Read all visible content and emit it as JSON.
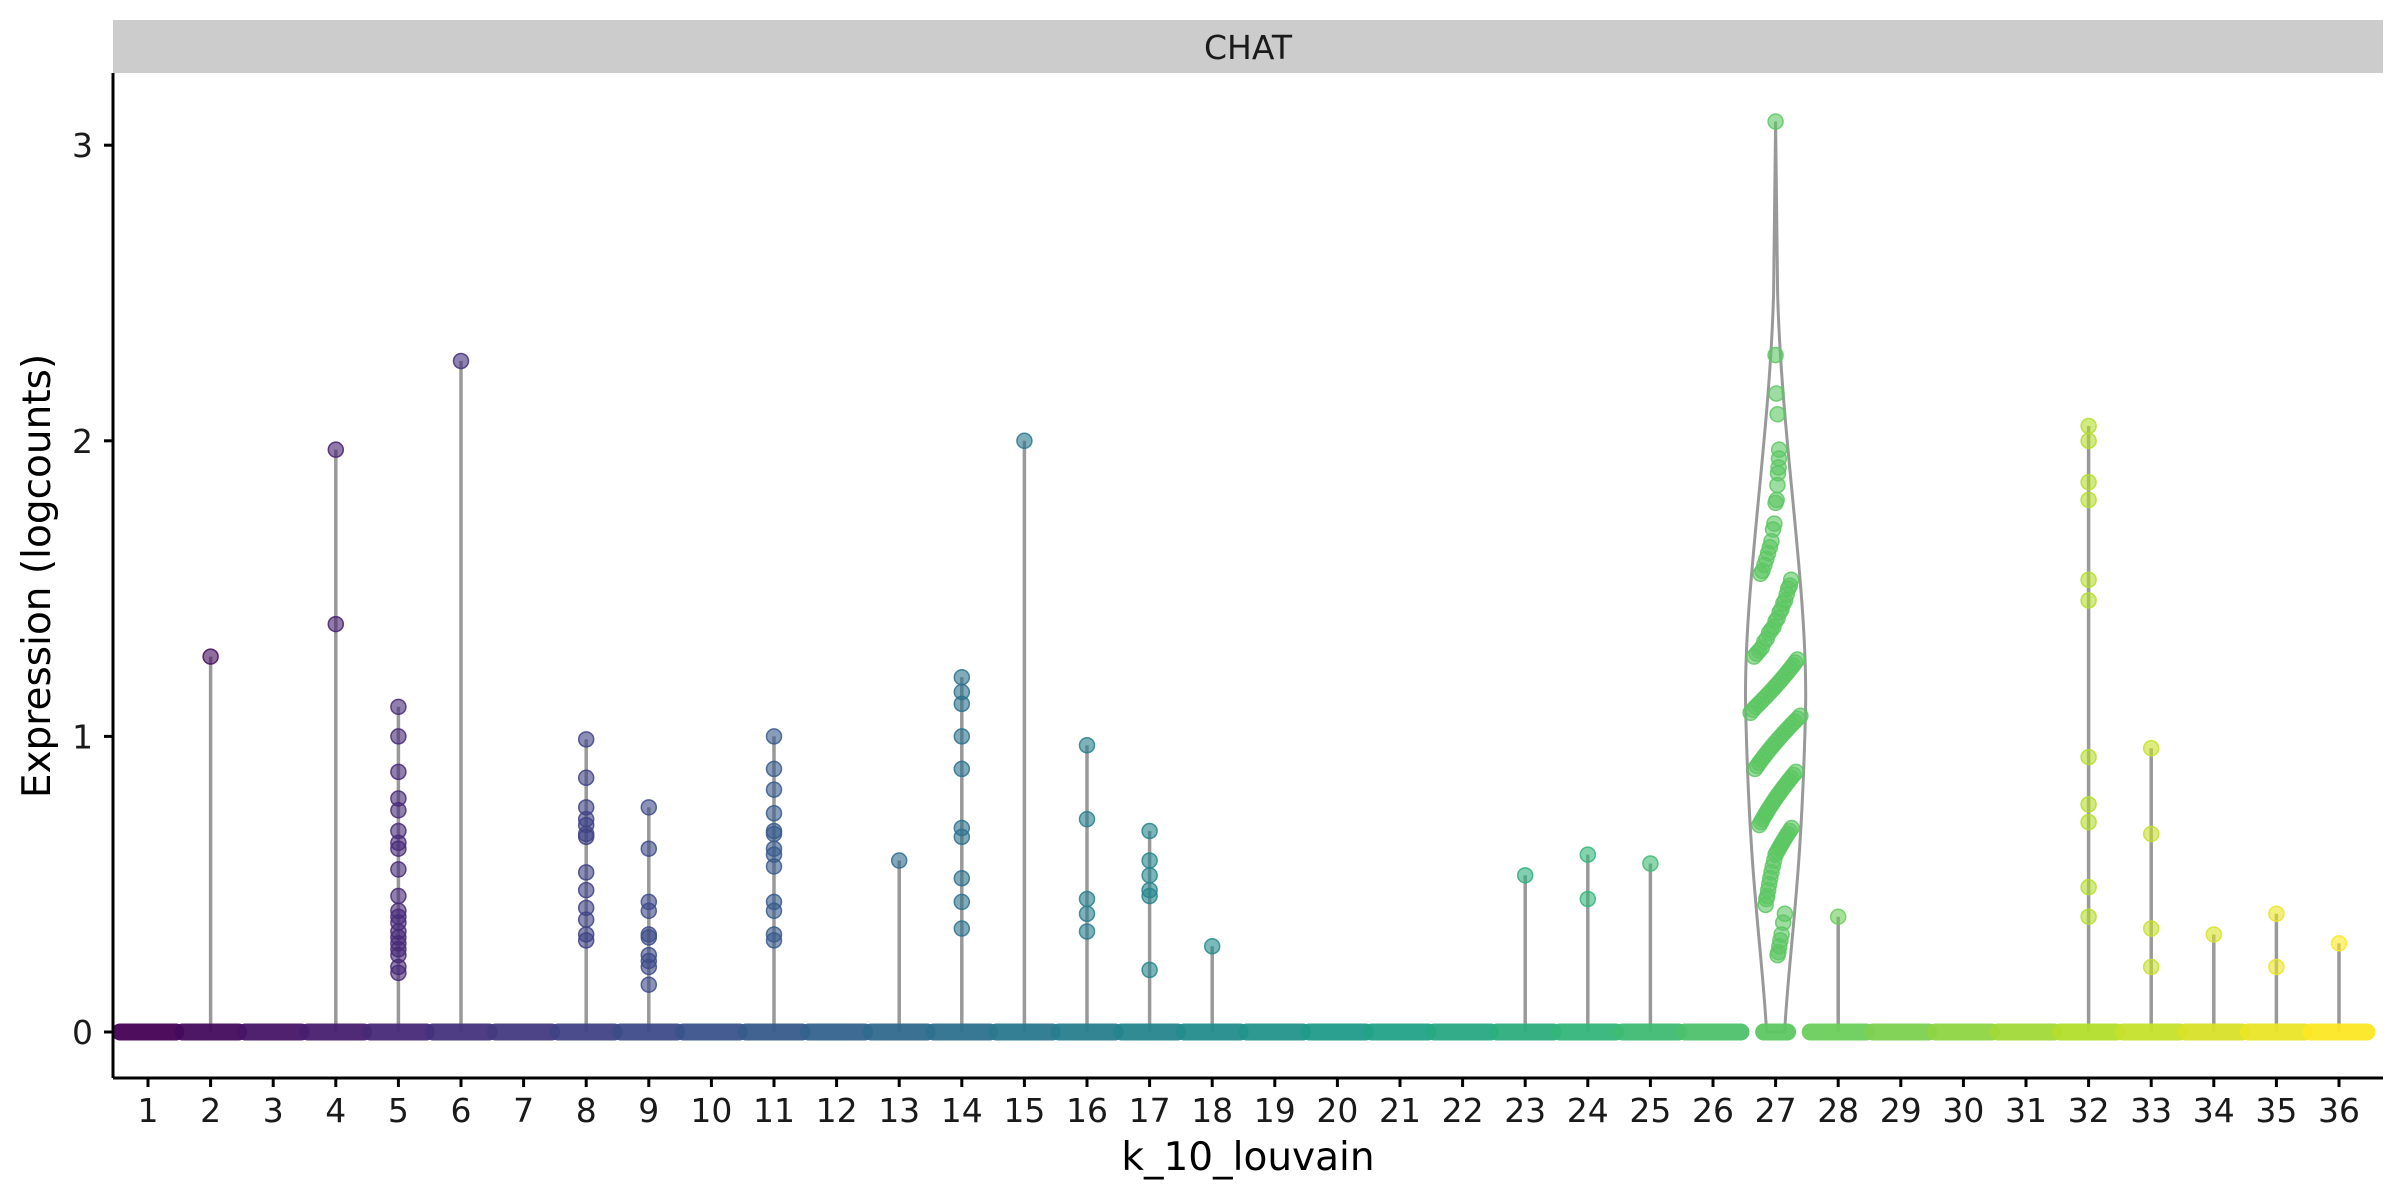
{
  "chart_data": {
    "type": "scatter",
    "subtype": "violin-jitter",
    "facet_title": "CHAT",
    "xlabel": "k_10_louvain",
    "ylabel": "Expression (logcounts)",
    "categories": [
      "1",
      "2",
      "3",
      "4",
      "5",
      "6",
      "7",
      "8",
      "9",
      "10",
      "11",
      "12",
      "13",
      "14",
      "15",
      "16",
      "17",
      "18",
      "19",
      "20",
      "21",
      "22",
      "23",
      "24",
      "25",
      "26",
      "27",
      "28",
      "29",
      "30",
      "31",
      "32",
      "33",
      "34",
      "35",
      "36"
    ],
    "ylim": [
      -0.15,
      3.25
    ],
    "yticks": [
      0,
      1,
      2,
      3
    ],
    "grid": false,
    "legend": "none",
    "colormap": "viridis",
    "violin_color": "#999999",
    "facet_strip_color": "#cccccc",
    "nonzero_values": {
      "1": [],
      "2": [
        1.27
      ],
      "3": [],
      "4": [
        1.97,
        1.38
      ],
      "5": [
        1.1,
        1.0,
        0.88,
        0.79,
        0.75,
        0.68,
        0.64,
        0.62,
        0.55,
        0.46,
        0.41,
        0.39,
        0.37,
        0.34,
        0.32,
        0.3,
        0.28,
        0.26,
        0.22,
        0.2
      ],
      "6": [
        2.27
      ],
      "7": [],
      "8": [
        0.99,
        0.86,
        0.76,
        0.72,
        0.7,
        0.67,
        0.66,
        0.54,
        0.48,
        0.42,
        0.38,
        0.33,
        0.31
      ],
      "9": [
        0.76,
        0.62,
        0.44,
        0.41,
        0.33,
        0.32,
        0.26,
        0.24,
        0.22,
        0.16
      ],
      "10": [],
      "11": [
        1.0,
        0.89,
        0.82,
        0.74,
        0.68,
        0.67,
        0.62,
        0.6,
        0.56,
        0.44,
        0.41,
        0.33,
        0.31
      ],
      "12": [],
      "13": [
        0.58
      ],
      "14": [
        1.2,
        1.15,
        1.11,
        1.0,
        0.89,
        0.69,
        0.66,
        0.52,
        0.44,
        0.35
      ],
      "15": [
        2.0
      ],
      "16": [
        0.97,
        0.72,
        0.45,
        0.4,
        0.34
      ],
      "17": [
        0.68,
        0.58,
        0.53,
        0.48,
        0.46,
        0.21
      ],
      "18": [
        0.29
      ],
      "19": [],
      "20": [],
      "21": [],
      "22": [],
      "23": [
        0.53
      ],
      "24": [
        0.6,
        0.45
      ],
      "25": [
        0.57
      ],
      "26": [],
      "27": [
        3.08,
        2.29,
        2.16,
        2.09,
        1.97,
        1.94,
        1.91,
        1.89,
        1.85,
        1.8,
        1.79,
        1.72,
        1.7,
        1.66,
        1.64,
        1.62,
        1.6,
        1.58,
        1.56,
        1.55,
        1.53,
        1.51,
        1.5,
        1.48,
        1.46,
        1.45,
        1.43,
        1.42,
        1.4,
        1.39,
        1.37,
        1.36,
        1.35,
        1.33,
        1.32,
        1.3,
        1.29,
        1.28,
        1.27,
        1.26,
        1.25,
        1.24,
        1.23,
        1.22,
        1.21,
        1.2,
        1.19,
        1.18,
        1.17,
        1.16,
        1.15,
        1.14,
        1.13,
        1.12,
        1.11,
        1.1,
        1.09,
        1.08,
        1.07,
        1.06,
        1.05,
        1.04,
        1.03,
        1.02,
        1.01,
        1.0,
        0.99,
        0.98,
        0.97,
        0.96,
        0.95,
        0.94,
        0.93,
        0.92,
        0.91,
        0.9,
        0.89,
        0.88,
        0.87,
        0.86,
        0.85,
        0.84,
        0.83,
        0.82,
        0.81,
        0.8,
        0.79,
        0.78,
        0.77,
        0.76,
        0.75,
        0.74,
        0.73,
        0.72,
        0.71,
        0.7,
        0.69,
        0.68,
        0.67,
        0.66,
        0.65,
        0.64,
        0.63,
        0.62,
        0.61,
        0.6,
        0.58,
        0.56,
        0.54,
        0.52,
        0.5,
        0.48,
        0.46,
        0.45,
        0.43,
        0.4,
        0.37,
        0.33,
        0.31,
        0.29,
        0.27,
        0.26
      ],
      "28": [
        0.39
      ],
      "29": [],
      "30": [],
      "31": [],
      "32": [
        2.05,
        2.0,
        1.86,
        1.8,
        1.53,
        1.46,
        0.93,
        0.77,
        0.71,
        0.49,
        0.39
      ],
      "33": [
        0.96,
        0.67,
        0.35,
        0.22
      ],
      "34": [
        0.33
      ],
      "35": [
        0.4,
        0.22
      ],
      "36": [
        0.3
      ]
    }
  }
}
